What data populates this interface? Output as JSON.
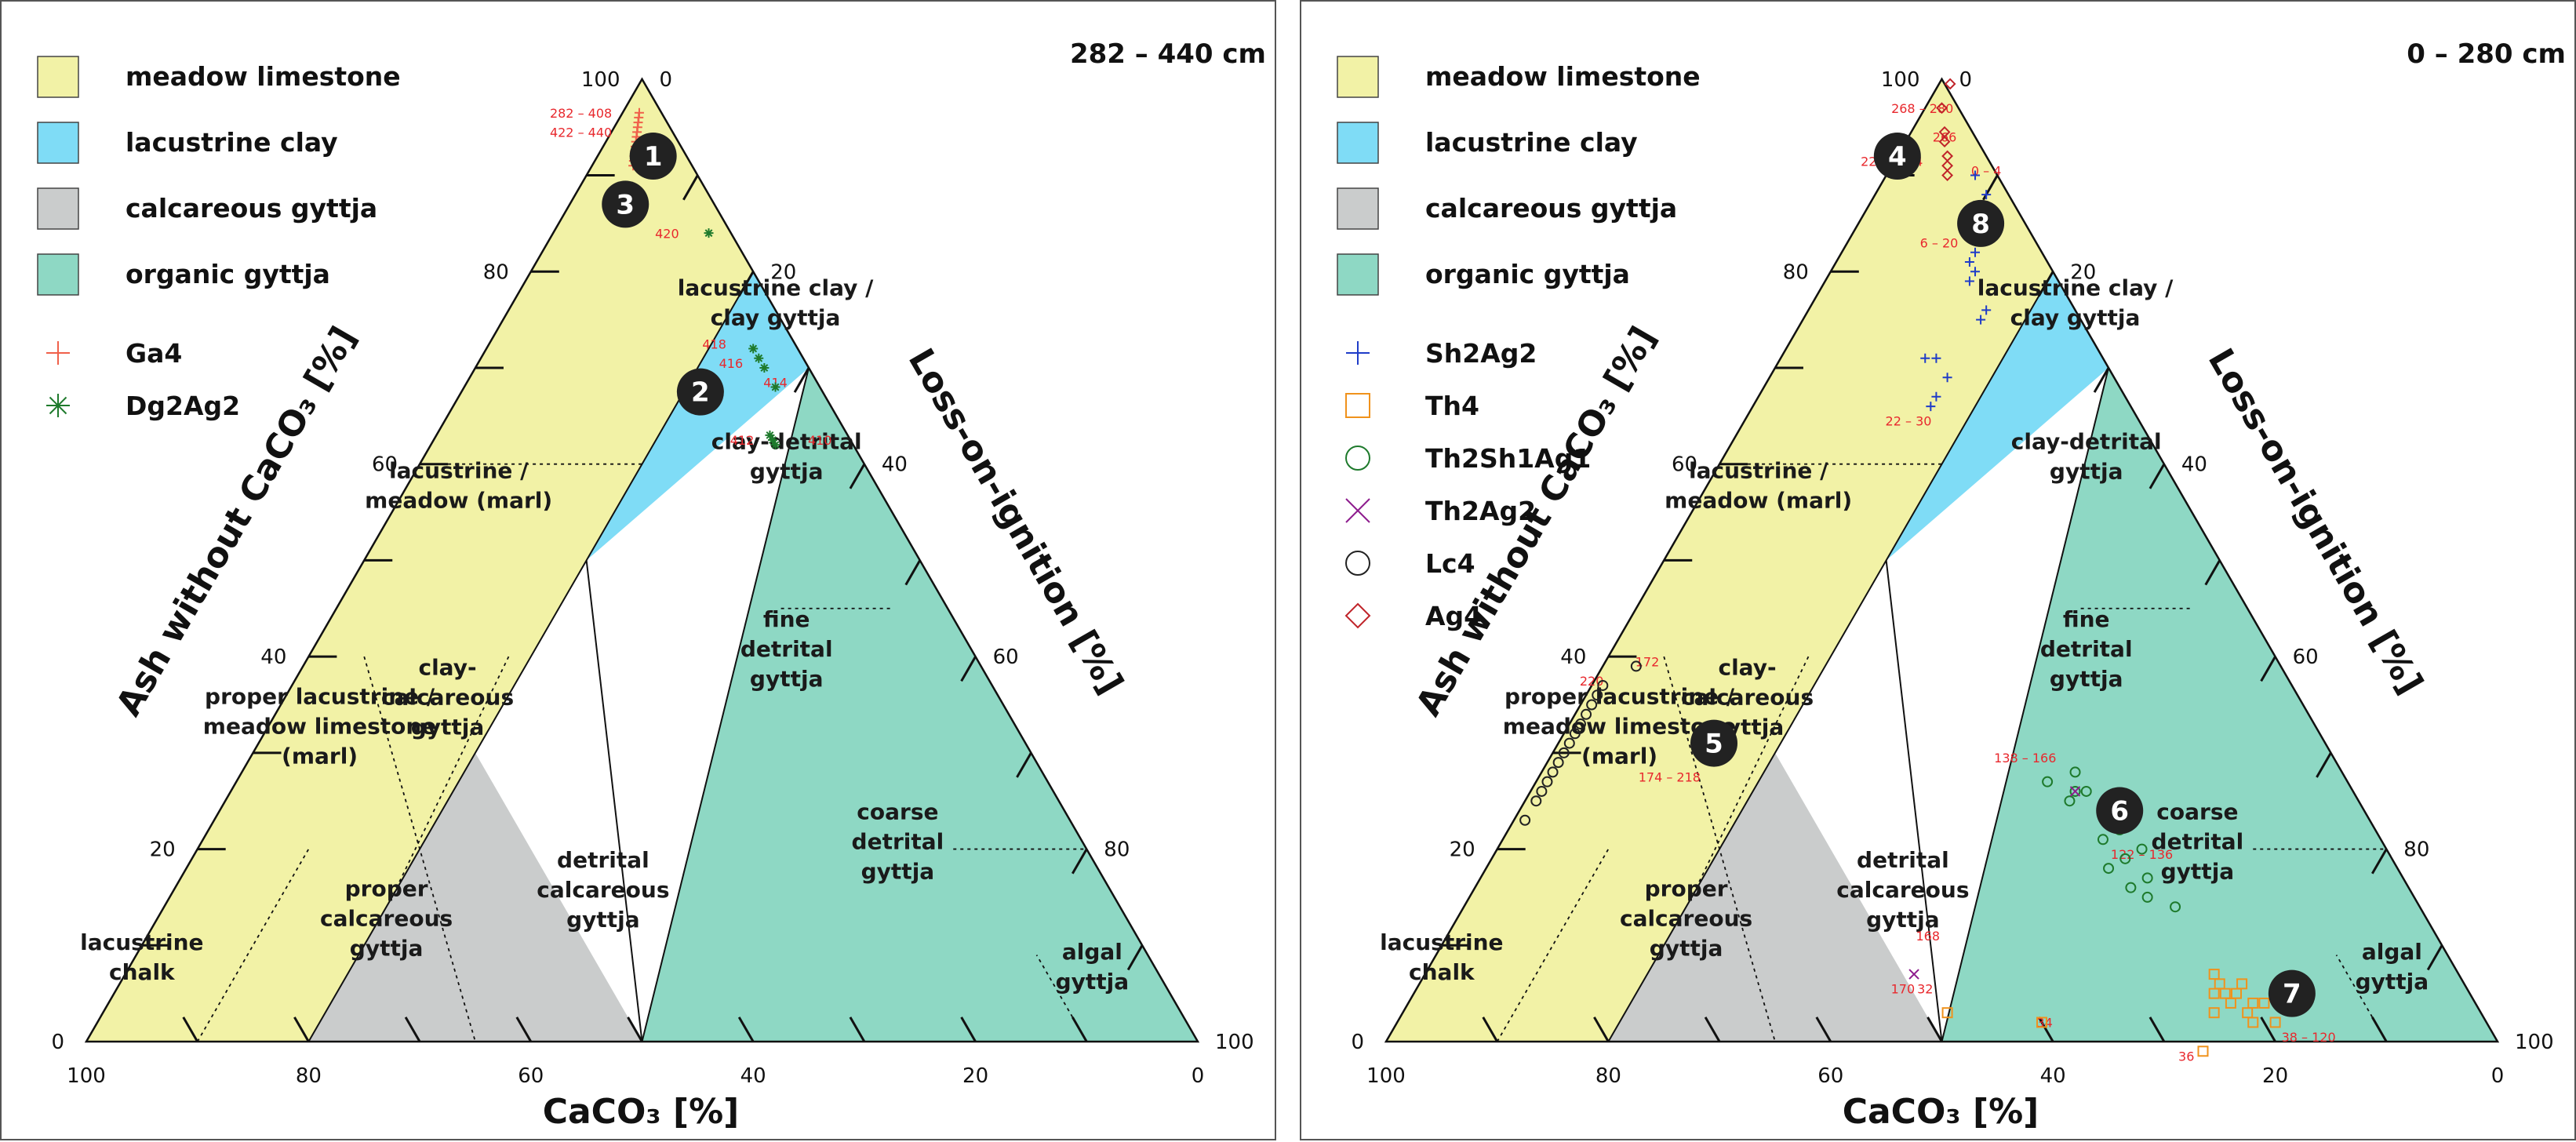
{
  "colors": {
    "meadow_limestone": "#f2f2a6",
    "lacustrine_clay": "#7fdcf6",
    "calcareous_gyttja": "#cacccc",
    "organic_gyttja": "#8ed8c4",
    "label_red": "#e8282d"
  },
  "axes": {
    "left_title": "Ash without CaCO₃ [%]",
    "right_title": "Loss-on-ignition [%]",
    "bottom_title": "CaCO₃ [%]",
    "left_ticks": [
      "0",
      "20",
      "40",
      "60",
      "80",
      "100"
    ],
    "right_ticks": [
      "0",
      "20",
      "40",
      "60",
      "80",
      "100"
    ],
    "bottom_ticks": [
      "100",
      "80",
      "60",
      "40",
      "20",
      "0"
    ]
  },
  "zones": {
    "lacustrine_clay": [
      "lacustrine clay /",
      "clay gyttja"
    ],
    "lacustrine_meadow": [
      "lacustrine /",
      "meadow (marl)"
    ],
    "proper_lacustrine": [
      "proper lacustrine /",
      "meadow limestone",
      "(marl)"
    ],
    "lacustrine_chalk": [
      "lacustrine",
      "chalk"
    ],
    "clay_calcareous": [
      "clay-",
      "calcareous",
      "gyttja"
    ],
    "proper_calcareous": [
      "proper",
      "calcareous",
      "gyttja"
    ],
    "detrital_calcareous": [
      "detrital",
      "calcareous",
      "gyttja"
    ],
    "clay_detrital": [
      "clay-detrital",
      "gyttja"
    ],
    "fine_detrital": [
      "fine",
      "detrital",
      "gyttja"
    ],
    "coarse_detrital": [
      "coarse",
      "detrital",
      "gyttja"
    ],
    "algal": [
      "algal",
      "gyttja"
    ]
  },
  "legend_facies": [
    "meadow limestone",
    "lacustrine clay",
    "calcareous gyttja",
    "organic gyttja"
  ],
  "panels": [
    {
      "range_label": "282 – 440 cm",
      "sample_legend": [
        {
          "label": "Ga4",
          "symbol": "plus",
          "color": "#f0604a"
        },
        {
          "label": "Dg2Ag2",
          "symbol": "asterisk",
          "color": "#1e7a2c"
        }
      ]
    },
    {
      "range_label": "0 – 280 cm",
      "sample_legend": [
        {
          "label": "Sh2Ag2",
          "symbol": "plus",
          "color": "#1f3cc8"
        },
        {
          "label": "Th4",
          "symbol": "square",
          "color": "#f0921c"
        },
        {
          "label": "Th2Sh1Ag1",
          "symbol": "circle",
          "color": "#1e7a2c"
        },
        {
          "label": "Th2Ag2",
          "symbol": "cross",
          "color": "#8e1c8e"
        },
        {
          "label": "Lc4",
          "symbol": "circle",
          "color": "#222222"
        },
        {
          "label": "Ag4",
          "symbol": "diamond",
          "color": "#c0242a"
        }
      ]
    }
  ],
  "chart_data": [
    {
      "type": "scatter",
      "title": "282 – 440 cm",
      "coordinate_system": "ternary",
      "components": [
        "CaCO3 [%]",
        "Ash without CaCO3 [%]",
        "Loss-on-ignition [%]"
      ],
      "series": [
        {
          "name": "Ga4",
          "points": [
            {
              "caco3": 2.0,
              "ash": 96.5,
              "loi": 1.5
            },
            {
              "caco3": 2.3,
              "ash": 96.0,
              "loi": 1.7
            },
            {
              "caco3": 2.6,
              "ash": 95.5,
              "loi": 1.9
            },
            {
              "caco3": 2.9,
              "ash": 95.0,
              "loi": 2.1
            },
            {
              "caco3": 3.2,
              "ash": 94.5,
              "loi": 2.3
            },
            {
              "caco3": 3.5,
              "ash": 94.0,
              "loi": 2.5
            },
            {
              "caco3": 3.8,
              "ash": 93.5,
              "loi": 2.7
            },
            {
              "caco3": 4.1,
              "ash": 93.0,
              "loi": 2.9
            },
            {
              "caco3": 4.4,
              "ash": 92.5,
              "loi": 3.1
            },
            {
              "caco3": 4.7,
              "ash": 92.0,
              "loi": 3.3
            },
            {
              "caco3": 5.0,
              "ash": 91.5,
              "loi": 3.5
            },
            {
              "caco3": 5.3,
              "ash": 91.0,
              "loi": 3.7
            }
          ]
        },
        {
          "name": "Dg2Ag2",
          "points": [
            {
              "caco3": 2.0,
              "ash": 84.0,
              "loi": 14.0
            },
            {
              "caco3": 4.0,
              "ash": 72.0,
              "loi": 24.0
            },
            {
              "caco3": 4.0,
              "ash": 71.0,
              "loi": 25.0
            },
            {
              "caco3": 4.0,
              "ash": 70.0,
              "loi": 26.0
            },
            {
              "caco3": 4.0,
              "ash": 68.0,
              "loi": 28.0
            },
            {
              "caco3": 7.0,
              "ash": 63.0,
              "loi": 30.0
            },
            {
              "caco3": 7.0,
              "ash": 62.5,
              "loi": 30.5
            },
            {
              "caco3": 7.0,
              "ash": 62.0,
              "loi": 31.0
            }
          ]
        }
      ],
      "annotations": [
        {
          "text": "282 – 408",
          "caco3": 7.5,
          "ash": 96.0,
          "loi": -3.5
        },
        {
          "text": "422 – 440",
          "caco3": 8.5,
          "ash": 94.0,
          "loi": -2.5
        },
        {
          "text": "420",
          "caco3": 6.0,
          "ash": 83.5,
          "loi": 10.5
        },
        {
          "text": "418",
          "caco3": 7.5,
          "ash": 72.0,
          "loi": 20.5
        },
        {
          "text": "416",
          "caco3": 7.0,
          "ash": 70.0,
          "loi": 23.0
        },
        {
          "text": "414",
          "caco3": 4.0,
          "ash": 68.0,
          "loi": 28.0
        },
        {
          "text": "412",
          "caco3": 10.0,
          "ash": 62.0,
          "loi": 28.0
        },
        {
          "text": "410",
          "caco3": 3.0,
          "ash": 62.0,
          "loi": 35.0
        }
      ],
      "markers": [
        {
          "text": "1",
          "caco3": 3.0,
          "ash": 92.0,
          "loi": 5.0
        },
        {
          "text": "3",
          "caco3": 8.0,
          "ash": 87.0,
          "loi": 5.0
        },
        {
          "text": "2",
          "caco3": 11.0,
          "ash": 67.5,
          "loi": 21.5
        }
      ]
    },
    {
      "type": "scatter",
      "title": "0 – 280 cm",
      "coordinate_system": "ternary",
      "components": [
        "CaCO3 [%]",
        "Ash without CaCO3 [%]",
        "Loss-on-ignition [%]"
      ],
      "series": [
        {
          "name": "Sh2Ag2",
          "points": [
            {
              "caco3": 2,
              "ash": 90,
              "loi": 8
            },
            {
              "caco3": 2,
              "ash": 88,
              "loi": 10
            },
            {
              "caco3": 6,
              "ash": 82,
              "loi": 12
            },
            {
              "caco3": 7,
              "ash": 81,
              "loi": 12
            },
            {
              "caco3": 7,
              "ash": 80,
              "loi": 13
            },
            {
              "caco3": 8,
              "ash": 79,
              "loi": 13
            },
            {
              "caco3": 8,
              "ash": 76,
              "loi": 16
            },
            {
              "caco3": 9,
              "ash": 75,
              "loi": 16
            },
            {
              "caco3": 15,
              "ash": 71,
              "loi": 14
            },
            {
              "caco3": 16,
              "ash": 71,
              "loi": 13
            },
            {
              "caco3": 15,
              "ash": 69,
              "loi": 16
            },
            {
              "caco3": 17,
              "ash": 67,
              "loi": 16
            },
            {
              "caco3": 18,
              "ash": 66,
              "loi": 16
            }
          ]
        },
        {
          "name": "Th4",
          "points": [
            {
              "caco3": 48,
              "ash": 3,
              "loi": 49
            },
            {
              "caco3": 40,
              "ash": 2,
              "loi": 58
            },
            {
              "caco3": 27,
              "ash": -1,
              "loi": 74
            },
            {
              "caco3": 22,
              "ash": 6,
              "loi": 72
            },
            {
              "caco3": 21,
              "ash": 5,
              "loi": 74
            },
            {
              "caco3": 20,
              "ash": 6,
              "loi": 74
            },
            {
              "caco3": 22,
              "ash": 5,
              "loi": 73
            },
            {
              "caco3": 22,
              "ash": 4,
              "loi": 74
            },
            {
              "caco3": 20,
              "ash": 4,
              "loi": 76
            },
            {
              "caco3": 21,
              "ash": 3,
              "loi": 76
            },
            {
              "caco3": 19,
              "ash": 4,
              "loi": 77
            },
            {
              "caco3": 23,
              "ash": 5,
              "loi": 72
            },
            {
              "caco3": 21,
              "ash": 2,
              "loi": 77
            },
            {
              "caco3": 19,
              "ash": 2,
              "loi": 79
            },
            {
              "caco3": 24,
              "ash": 3,
              "loi": 73
            },
            {
              "caco3": 22,
              "ash": 7,
              "loi": 71
            }
          ]
        },
        {
          "name": "Th2Sh1Ag1",
          "points": [
            {
              "caco3": 25,
              "ash": 26,
              "loi": 49
            },
            {
              "caco3": 24,
              "ash": 26,
              "loi": 50
            },
            {
              "caco3": 26,
              "ash": 25,
              "loi": 49
            },
            {
              "caco3": 24,
              "ash": 28,
              "loi": 48
            },
            {
              "caco3": 27,
              "ash": 27,
              "loi": 46
            },
            {
              "caco3": 25,
              "ash": 21,
              "loi": 54
            },
            {
              "caco3": 22,
              "ash": 20,
              "loi": 58
            },
            {
              "caco3": 24,
              "ash": 19,
              "loi": 57
            },
            {
              "caco3": 23,
              "ash": 22,
              "loi": 55
            },
            {
              "caco3": 26,
              "ash": 18,
              "loi": 56
            },
            {
              "caco3": 25,
              "ash": 16,
              "loi": 59
            },
            {
              "caco3": 23,
              "ash": 17,
              "loi": 60
            },
            {
              "caco3": 24,
              "ash": 15,
              "loi": 61
            },
            {
              "caco3": 22,
              "ash": 14,
              "loi": 64
            }
          ]
        },
        {
          "name": "Th2Ag2",
          "points": [
            {
              "caco3": 49,
              "ash": 7,
              "loi": 44
            },
            {
              "caco3": 25,
              "ash": 26,
              "loi": 49
            }
          ]
        },
        {
          "name": "Lc4",
          "points": [
            {
              "caco3": 62,
              "ash": 37,
              "loi": 1
            },
            {
              "caco3": 63,
              "ash": 36,
              "loi": 1
            },
            {
              "caco3": 64,
              "ash": 35,
              "loi": 1
            },
            {
              "caco3": 65,
              "ash": 34,
              "loi": 1
            },
            {
              "caco3": 66,
              "ash": 33,
              "loi": 1
            },
            {
              "caco3": 67,
              "ash": 32,
              "loi": 1
            },
            {
              "caco3": 68,
              "ash": 31,
              "loi": 1
            },
            {
              "caco3": 69,
              "ash": 30,
              "loi": 1
            },
            {
              "caco3": 70,
              "ash": 29,
              "loi": 1
            },
            {
              "caco3": 71,
              "ash": 28,
              "loi": 1
            },
            {
              "caco3": 72,
              "ash": 27,
              "loi": 1
            },
            {
              "caco3": 73,
              "ash": 26,
              "loi": 1
            },
            {
              "caco3": 74,
              "ash": 25,
              "loi": 1
            },
            {
              "caco3": 76,
              "ash": 23,
              "loi": 1
            },
            {
              "caco3": 58,
              "ash": 39,
              "loi": 3
            }
          ]
        },
        {
          "name": "Ag4",
          "points": [
            {
              "caco3": -0.5,
              "ash": 99.5,
              "loi": 1.0
            },
            {
              "caco3": 1.5,
              "ash": 97.0,
              "loi": 1.5
            },
            {
              "caco3": 2.5,
              "ash": 94.5,
              "loi": 3.0
            },
            {
              "caco3": 3.0,
              "ash": 93.5,
              "loi": 3.5
            },
            {
              "caco3": 3.5,
              "ash": 92.0,
              "loi": 4.5
            },
            {
              "caco3": 4.0,
              "ash": 91.0,
              "loi": 5.0
            },
            {
              "caco3": 4.5,
              "ash": 90.0,
              "loi": 5.5
            }
          ]
        }
      ],
      "annotations": [
        {
          "text": "268 – 280",
          "caco3": 3.5,
          "ash": 96.5,
          "loi": 0.0
        },
        {
          "text": "266",
          "caco3": 3.0,
          "ash": 93.5,
          "loi": 3.5
        },
        {
          "text": "0 – 4",
          "caco3": 1.0,
          "ash": 90.0,
          "loi": 9.0
        },
        {
          "text": "222 – 264",
          "caco3": 9.0,
          "ash": 91.0,
          "loi": 0.0
        },
        {
          "text": "6 – 20",
          "caco3": 9.0,
          "ash": 82.5,
          "loi": 8.5
        },
        {
          "text": "22 – 30",
          "caco3": 21.0,
          "ash": 64.0,
          "loi": 15.0
        },
        {
          "text": "138 – 166",
          "caco3": 28.0,
          "ash": 29.0,
          "loi": 43.0
        },
        {
          "text": "122 – 136",
          "caco3": 22.5,
          "ash": 19.0,
          "loi": 58.5
        },
        {
          "text": "168",
          "caco3": 46.0,
          "ash": 10.5,
          "loi": 43.5
        },
        {
          "text": "32",
          "caco3": 49.0,
          "ash": 5.0,
          "loi": 46.0
        },
        {
          "text": "34",
          "caco3": 40.0,
          "ash": 1.5,
          "loi": 58.5
        },
        {
          "text": "36",
          "caco3": 29.0,
          "ash": -2.0,
          "loi": 73.0
        },
        {
          "text": "170",
          "caco3": 51.0,
          "ash": 5.0,
          "loi": 44.0
        },
        {
          "text": "38 – 120",
          "caco3": 17.0,
          "ash": 0.0,
          "loi": 83.0
        },
        {
          "text": "220",
          "caco3": 63.0,
          "ash": 37.0,
          "loi": 0.0
        },
        {
          "text": "172",
          "caco3": 57.0,
          "ash": 39.0,
          "loi": 4.0
        },
        {
          "text": "174 – 218",
          "caco3": 61.0,
          "ash": 27.0,
          "loi": 12.0
        }
      ],
      "markers": [
        {
          "text": "4",
          "caco3": 8.0,
          "ash": 92.0,
          "loi": 0.0
        },
        {
          "text": "8",
          "caco3": 4.0,
          "ash": 85.0,
          "loi": 11.0
        },
        {
          "text": "6",
          "caco3": 22.0,
          "ash": 24.0,
          "loi": 54.0
        },
        {
          "text": "5",
          "caco3": 55.0,
          "ash": 31.0,
          "loi": 14.0
        },
        {
          "text": "7",
          "caco3": 16.0,
          "ash": 5.0,
          "loi": 79.0
        }
      ]
    }
  ]
}
